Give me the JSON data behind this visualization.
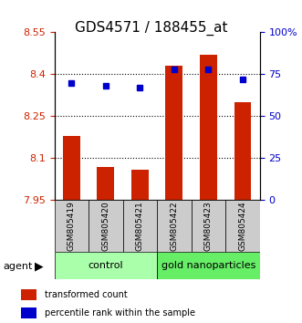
{
  "title": "GDS4571 / 188455_at",
  "samples": [
    "GSM805419",
    "GSM805420",
    "GSM805421",
    "GSM805422",
    "GSM805423",
    "GSM805424"
  ],
  "bar_values": [
    8.18,
    8.07,
    8.06,
    8.43,
    8.47,
    8.3
  ],
  "bar_bottom": 7.95,
  "percentile_values": [
    70,
    68,
    67,
    78,
    78,
    72
  ],
  "ylim_left": [
    7.95,
    8.55
  ],
  "ylim_right": [
    0,
    100
  ],
  "yticks_left": [
    7.95,
    8.1,
    8.25,
    8.4,
    8.55
  ],
  "ytick_labels_left": [
    "7.95",
    "8.1",
    "8.25",
    "8.4",
    "8.55"
  ],
  "yticks_right": [
    0,
    25,
    50,
    75,
    100
  ],
  "ytick_labels_right": [
    "0",
    "25",
    "50",
    "75",
    "100%"
  ],
  "hlines": [
    8.1,
    8.25,
    8.4
  ],
  "bar_color": "#cc2200",
  "dot_color": "#0000cc",
  "control_color": "#aaffaa",
  "gold_color": "#66ee66",
  "sample_bg_color": "#cccccc",
  "agent_label": "agent",
  "control_label": "control",
  "gold_label": "gold nanoparticles",
  "legend_bar_label": "transformed count",
  "legend_dot_label": "percentile rank within the sample"
}
